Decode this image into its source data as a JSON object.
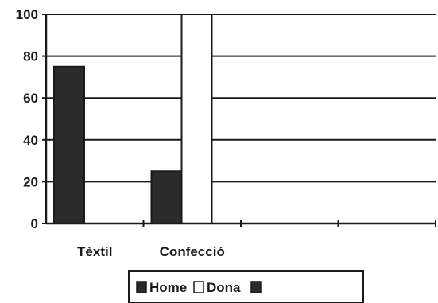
{
  "chart_data": {
    "type": "bar",
    "categories": [
      "Tèxtil",
      "Confecció",
      "",
      ""
    ],
    "series": [
      {
        "name": "Home",
        "values": [
          75,
          25,
          null,
          null
        ],
        "color": "#2b2b2b"
      },
      {
        "name": "Dona",
        "values": [
          null,
          100,
          null,
          null
        ],
        "color": "#ffffff"
      },
      {
        "name": "",
        "values": [
          null,
          null,
          null,
          null
        ],
        "color": "#2b2b2b"
      }
    ],
    "yticks": [
      0,
      20,
      40,
      60,
      80,
      100
    ],
    "ylim": [
      0,
      100
    ],
    "grid": true,
    "legend_position": "bottom"
  }
}
